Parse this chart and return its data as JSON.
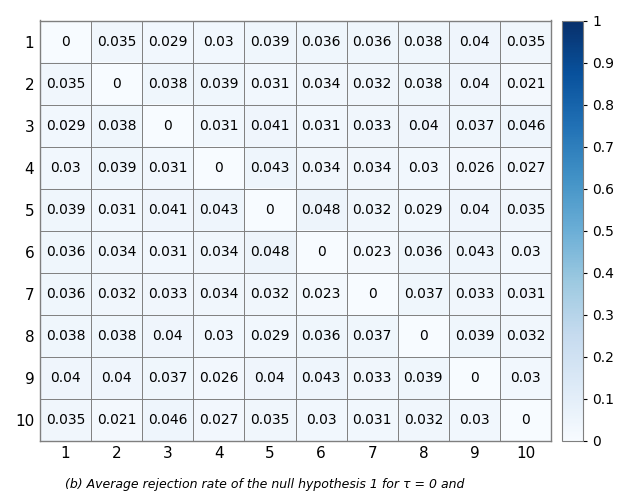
{
  "matrix": [
    [
      0,
      0.035,
      0.029,
      0.03,
      0.039,
      0.036,
      0.036,
      0.038,
      0.04,
      0.035
    ],
    [
      0.035,
      0,
      0.038,
      0.039,
      0.031,
      0.034,
      0.032,
      0.038,
      0.04,
      0.021
    ],
    [
      0.029,
      0.038,
      0,
      0.031,
      0.041,
      0.031,
      0.033,
      0.04,
      0.037,
      0.046
    ],
    [
      0.03,
      0.039,
      0.031,
      0,
      0.043,
      0.034,
      0.034,
      0.03,
      0.026,
      0.027
    ],
    [
      0.039,
      0.031,
      0.041,
      0.043,
      0,
      0.048,
      0.032,
      0.029,
      0.04,
      0.035
    ],
    [
      0.036,
      0.034,
      0.031,
      0.034,
      0.048,
      0,
      0.023,
      0.036,
      0.043,
      0.03
    ],
    [
      0.036,
      0.032,
      0.033,
      0.034,
      0.032,
      0.023,
      0,
      0.037,
      0.033,
      0.031
    ],
    [
      0.038,
      0.038,
      0.04,
      0.03,
      0.029,
      0.036,
      0.037,
      0,
      0.039,
      0.032
    ],
    [
      0.04,
      0.04,
      0.037,
      0.026,
      0.04,
      0.043,
      0.033,
      0.039,
      0,
      0.03
    ],
    [
      0.035,
      0.021,
      0.046,
      0.027,
      0.035,
      0.03,
      0.031,
      0.032,
      0.03,
      0
    ]
  ],
  "tick_labels": [
    "1",
    "2",
    "3",
    "4",
    "5",
    "6",
    "7",
    "8",
    "9",
    "10"
  ],
  "vmin": 0,
  "vmax": 1,
  "colormap": "Blues",
  "cell_fontsize": 10,
  "tick_fontsize": 11,
  "colorbar_tick_fontsize": 10,
  "grid_color": "#7f7f7f",
  "grid_linewidth": 0.7,
  "background_color": "#ffffff",
  "caption": "(b) Average rejection rate of the null hypothesis 1 for τ = 0 and"
}
